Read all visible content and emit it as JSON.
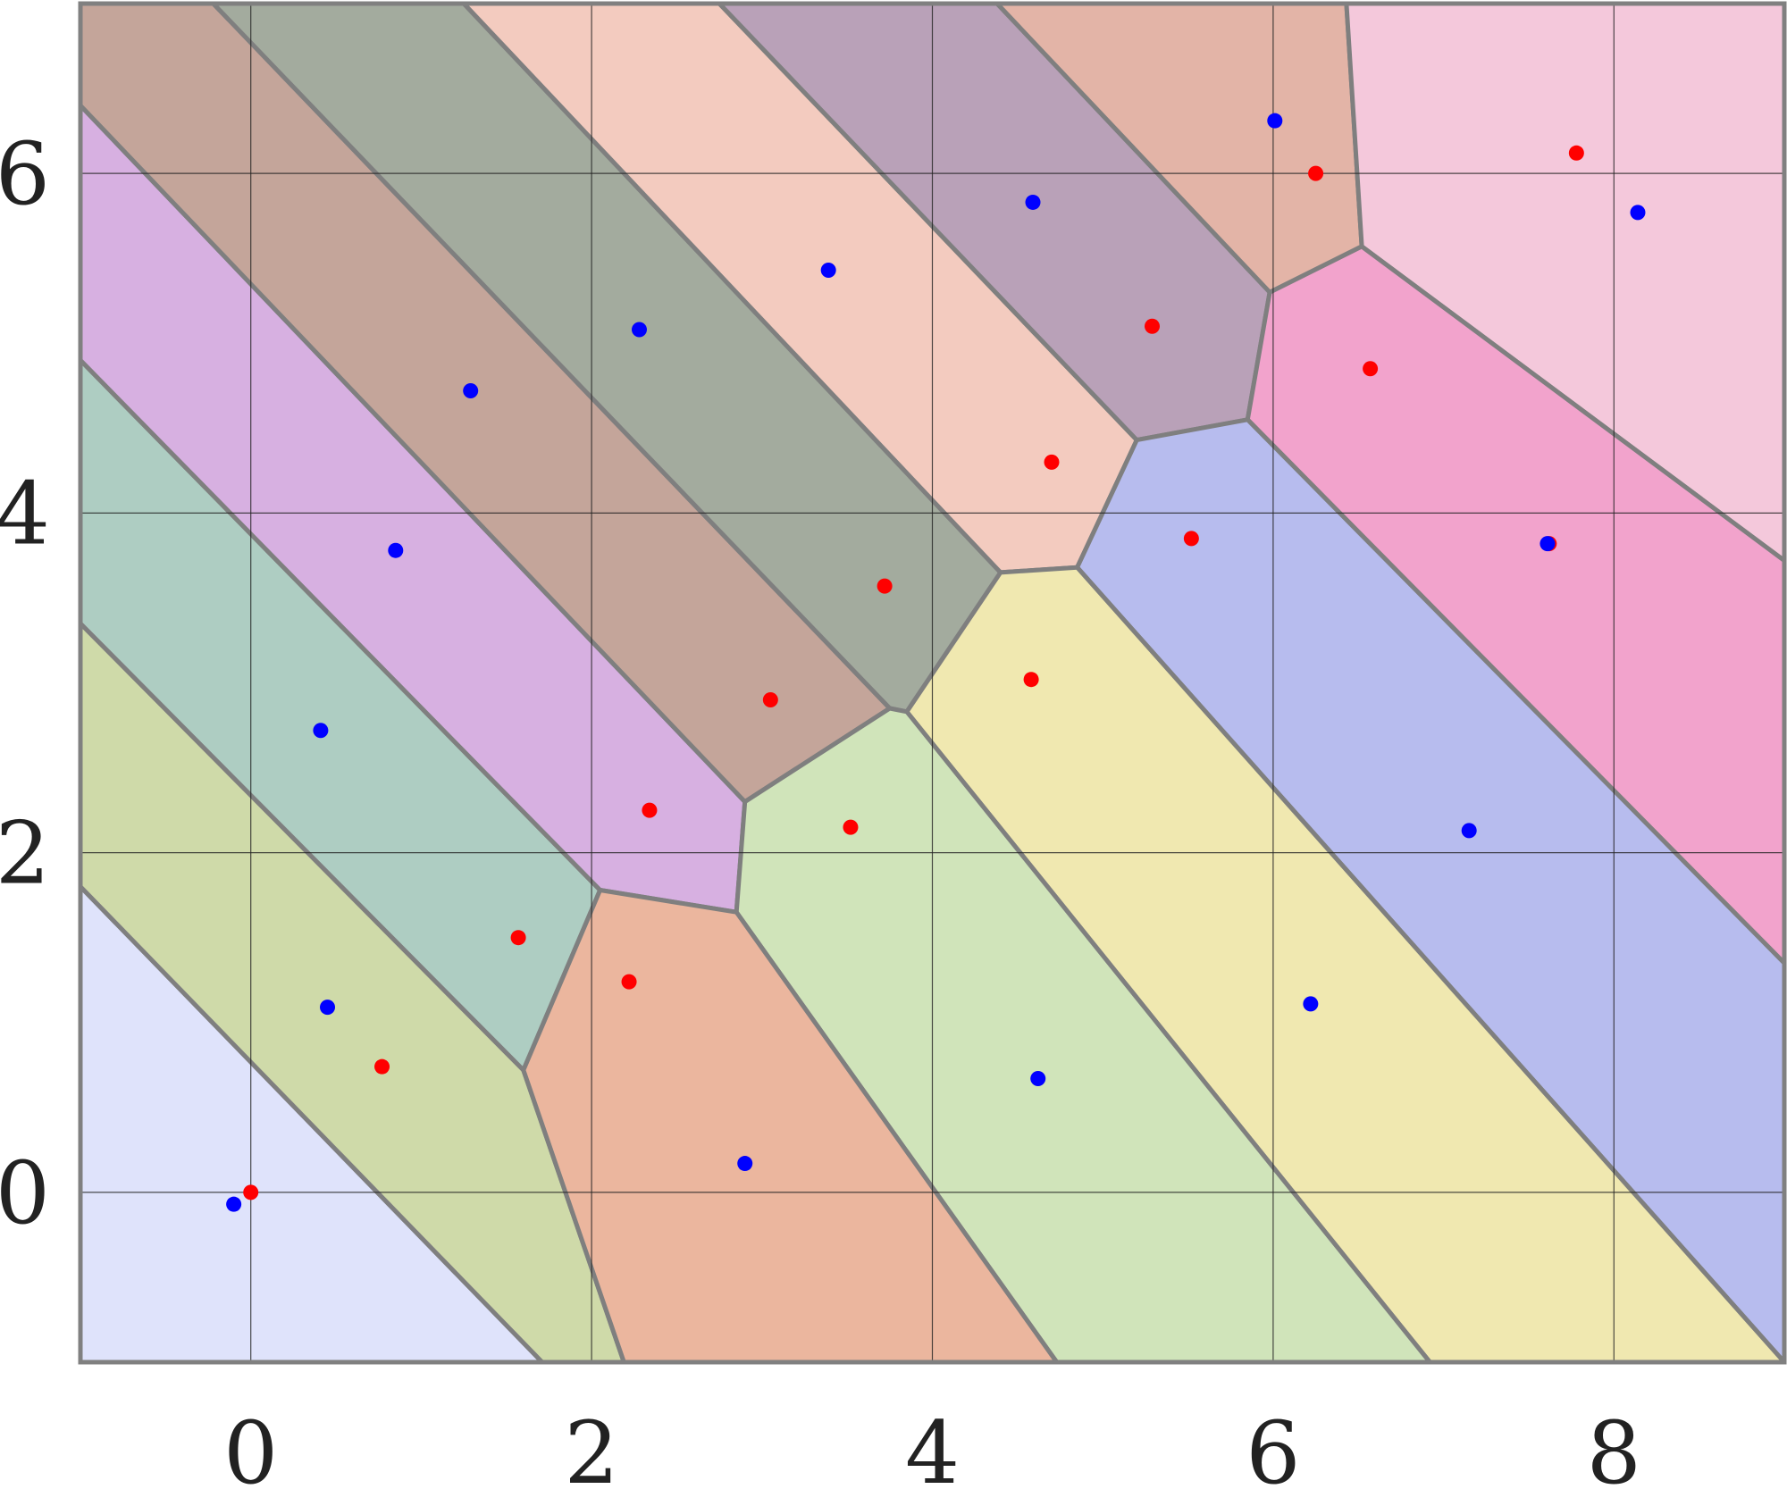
{
  "chart_data": {
    "type": "scatter",
    "title": "",
    "xlabel": "",
    "ylabel": "",
    "xlim": [
      -1,
      9
    ],
    "ylim": [
      -1,
      7
    ],
    "xticks": [
      0,
      2,
      4,
      6,
      8
    ],
    "yticks": [
      0,
      2,
      4,
      6
    ],
    "xtick_labels": [
      "0",
      "2",
      "4",
      "6",
      "8"
    ],
    "ytick_labels": [
      "0",
      "2",
      "4",
      "6"
    ],
    "grid": true,
    "legend": "none",
    "cells": [
      {
        "color": "#dfe3fb",
        "points": [
          [
            -1,
            1.8
          ],
          [
            1.71,
            -1
          ],
          [
            -1,
            -1
          ]
        ]
      },
      {
        "color": "#cfdaa9",
        "points": [
          [
            -1,
            3.35
          ],
          [
            1.6,
            0.72
          ],
          [
            2.19,
            -1
          ],
          [
            1.71,
            -1
          ],
          [
            -1,
            1.8
          ]
        ]
      },
      {
        "color": "#aecdc2",
        "points": [
          [
            -1,
            4.9
          ],
          [
            2.05,
            1.78
          ],
          [
            1.6,
            0.72
          ],
          [
            -1,
            3.35
          ]
        ]
      },
      {
        "color": "#d7b0e1",
        "points": [
          [
            -1,
            6.4
          ],
          [
            2.9,
            2.3
          ],
          [
            2.85,
            1.65
          ],
          [
            2.05,
            1.78
          ],
          [
            -1,
            4.9
          ]
        ]
      },
      {
        "color": "#c4a59a",
        "points": [
          [
            -1,
            7
          ],
          [
            -0.22,
            7
          ],
          [
            3.75,
            2.85
          ],
          [
            2.9,
            2.3
          ],
          [
            -1,
            6.4
          ]
        ]
      },
      {
        "color": "#a3ab9e",
        "points": [
          [
            -0.22,
            7
          ],
          [
            1.25,
            7
          ],
          [
            4.4,
            3.65
          ],
          [
            3.85,
            2.83
          ],
          [
            3.75,
            2.85
          ]
        ]
      },
      {
        "color": "#f3cbbf",
        "points": [
          [
            1.25,
            7
          ],
          [
            2.75,
            7
          ],
          [
            5.2,
            4.43
          ],
          [
            4.85,
            3.68
          ],
          [
            4.4,
            3.65
          ]
        ]
      },
      {
        "color": "#b9a1b8",
        "points": [
          [
            2.75,
            7
          ],
          [
            4.38,
            7
          ],
          [
            5.98,
            5.3
          ],
          [
            5.85,
            4.55
          ],
          [
            5.2,
            4.43
          ]
        ]
      },
      {
        "color": "#e3b4a7",
        "points": [
          [
            4.38,
            7
          ],
          [
            6.43,
            7
          ],
          [
            6.52,
            5.57
          ],
          [
            5.98,
            5.3
          ]
        ]
      },
      {
        "color": "#f4c8db",
        "points": [
          [
            6.43,
            7
          ],
          [
            9,
            7
          ],
          [
            9,
            3.72
          ],
          [
            6.52,
            5.57
          ]
        ]
      },
      {
        "color": "#f2a3cc",
        "points": [
          [
            6.52,
            5.57
          ],
          [
            9,
            3.72
          ],
          [
            9,
            1.35
          ],
          [
            5.85,
            4.55
          ],
          [
            5.98,
            5.3
          ]
        ]
      },
      {
        "color": "#b7bcee",
        "points": [
          [
            5.85,
            4.55
          ],
          [
            9,
            1.35
          ],
          [
            9,
            -1
          ],
          [
            4.85,
            3.68
          ],
          [
            5.2,
            4.43
          ]
        ]
      },
      {
        "color": "#f0e8b0",
        "points": [
          [
            4.85,
            3.68
          ],
          [
            9,
            -1
          ],
          [
            6.92,
            -1
          ],
          [
            3.85,
            2.83
          ],
          [
            4.4,
            3.65
          ]
        ]
      },
      {
        "color": "#d0e4ba",
        "points": [
          [
            3.85,
            2.83
          ],
          [
            6.92,
            -1
          ],
          [
            4.73,
            -1
          ],
          [
            2.85,
            1.65
          ],
          [
            2.9,
            2.3
          ],
          [
            3.75,
            2.85
          ]
        ]
      },
      {
        "color": "#ebb69e",
        "points": [
          [
            2.85,
            1.65
          ],
          [
            4.73,
            -1
          ],
          [
            2.19,
            -1
          ],
          [
            1.6,
            0.72
          ],
          [
            2.05,
            1.78
          ]
        ]
      }
    ],
    "series": [
      {
        "color": "#ff0000",
        "x": [
          0.0,
          0.77,
          1.57,
          2.22,
          2.34,
          3.52,
          3.05,
          3.72,
          4.58,
          4.7,
          5.29,
          5.52,
          6.25,
          6.57,
          7.78,
          7.62
        ],
        "y": [
          0.0,
          0.74,
          1.5,
          1.24,
          2.25,
          2.15,
          2.9,
          3.57,
          3.02,
          4.3,
          5.1,
          3.85,
          6.0,
          4.85,
          6.12,
          3.82
        ]
      },
      {
        "color": "#0000ff",
        "x": [
          -0.1,
          0.45,
          0.41,
          0.85,
          1.29,
          2.28,
          3.39,
          4.59,
          6.01,
          8.14,
          7.61,
          7.15,
          6.22,
          4.62,
          2.9
        ],
        "y": [
          -0.07,
          1.09,
          2.72,
          3.78,
          4.72,
          5.08,
          5.43,
          5.83,
          6.31,
          5.77,
          3.82,
          2.13,
          1.11,
          0.67,
          0.17
        ]
      }
    ]
  }
}
